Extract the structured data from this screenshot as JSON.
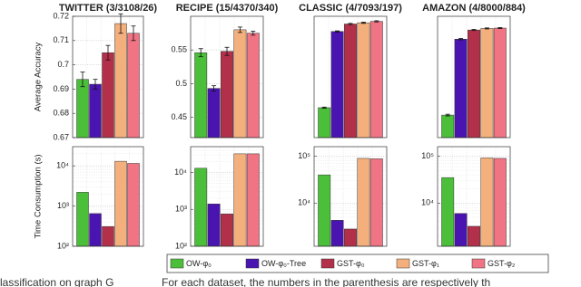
{
  "legend": [
    {
      "name": "OW-φ₀",
      "color": "#4cbf3a"
    },
    {
      "name": "OW-φ₀-Tree",
      "color": "#4a14b0"
    },
    {
      "name": "GST-φ₀",
      "color": "#b3304a"
    },
    {
      "name": "GST-φ₁",
      "color": "#f4b07c"
    },
    {
      "name": "GST-φ₂",
      "color": "#f07484"
    }
  ],
  "chart_data": [
    {
      "type": "bar",
      "title": "TWITTER (3/3108/26)",
      "ylabel": "Average Accuracy",
      "values": [
        0.694,
        0.692,
        0.705,
        0.717,
        0.713
      ],
      "errors": [
        0.003,
        0.002,
        0.003,
        0.004,
        0.003
      ],
      "ylim": [
        0.67,
        0.72
      ],
      "yticks": [
        0.67,
        0.68,
        0.69,
        0.7,
        0.71,
        0.72
      ],
      "grid": true
    },
    {
      "type": "bar",
      "title": "RECIPE (15/4370/340)",
      "values": [
        0.546,
        0.493,
        0.548,
        0.58,
        0.575
      ],
      "errors": [
        0.006,
        0.004,
        0.006,
        0.004,
        0.003
      ],
      "ylim": [
        0.42,
        0.6
      ],
      "yticks": [
        0.45,
        0.5,
        0.55
      ],
      "grid": true
    },
    {
      "type": "bar",
      "title": "CLASSIC (4/7093/197)",
      "values": [
        0.548,
        0.925,
        0.962,
        0.968,
        0.975
      ],
      "errors": [
        0.003,
        0.003,
        0.003,
        0.003,
        0.003
      ],
      "ylim": [
        0.4,
        1.0
      ],
      "grid": true
    },
    {
      "type": "bar",
      "title": "AMAZON (4/8000/884)",
      "values": [
        0.43,
        0.868,
        0.921,
        0.93,
        0.932
      ],
      "errors": [
        0.005,
        0.004,
        0.003,
        0.003,
        0.003
      ],
      "ylim": [
        0.3,
        1.0
      ],
      "grid": true
    },
    {
      "type": "bar",
      "log": true,
      "ylabel": "Time Consumption (s)",
      "values": [
        2200,
        650,
        310,
        13000,
        11500
      ],
      "ylim": [
        100,
        30000
      ],
      "yticks": [
        {
          "value": 100,
          "label": "10²"
        },
        {
          "value": 1000,
          "label": "10³"
        },
        {
          "value": 10000,
          "label": "10⁴"
        }
      ],
      "grid": true
    },
    {
      "type": "bar",
      "log": true,
      "values": [
        13000,
        1400,
        750,
        32000,
        32000
      ],
      "ylim": [
        100,
        50000
      ],
      "yticks": [
        {
          "value": 100,
          "label": "10²"
        },
        {
          "value": 1000,
          "label": "10³"
        },
        {
          "value": 10000,
          "label": "10⁴"
        }
      ],
      "grid": true
    },
    {
      "type": "bar",
      "log": true,
      "values": [
        40000,
        4300,
        2800,
        90000,
        88000
      ],
      "ylim": [
        1200,
        160000
      ],
      "yticks": [
        {
          "value": 10000,
          "label": "10⁴"
        },
        {
          "value": 100000,
          "label": "10⁵"
        }
      ],
      "grid": true
    },
    {
      "type": "bar",
      "log": true,
      "values": [
        35000,
        6000,
        3200,
        92000,
        90000
      ],
      "ylim": [
        1200,
        160000
      ],
      "yticks": [
        {
          "value": 10000,
          "label": "10⁴"
        },
        {
          "value": 100000,
          "label": "10⁵"
        }
      ],
      "grid": true
    }
  ],
  "caption": [
    "lassification on graph G",
    "For each dataset, the numbers in the parenthesis are respectively th"
  ]
}
